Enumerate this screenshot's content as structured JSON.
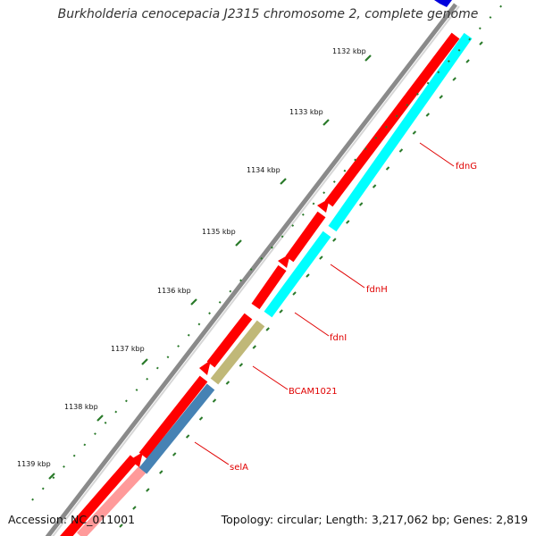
{
  "title": "Burkholderia cenocepacia J2315 chromosome 2, complete genome",
  "accession": "Accession: NC_011001",
  "summary": "Topology: circular; Length: 3,217,062 bp; Genes: 2,819",
  "colors": {
    "backbone": "#8a8a8a",
    "forward_gene": "#ff0000",
    "forward_gene_light": "#ff9a9a",
    "fdn_strand": "#00ffff",
    "bcam_strand": "#c0b878",
    "sel_strand": "#4682b4",
    "tick_major": "#2a7a2a",
    "tick_minor": "#2a7a2a",
    "label_color": "#e00000",
    "top_gene_blue": "#0000dd"
  },
  "ticks": [
    {
      "label": "1132 kbp"
    },
    {
      "label": "1133 kbp"
    },
    {
      "label": "1134 kbp"
    },
    {
      "label": "1135 kbp"
    },
    {
      "label": "1136 kbp"
    },
    {
      "label": "1137 kbp"
    },
    {
      "label": "1138 kbp"
    },
    {
      "label": "1139 kbp"
    }
  ],
  "gene_labels": [
    {
      "name": "fdnG"
    },
    {
      "name": "fdnH"
    },
    {
      "name": "fdnI"
    },
    {
      "name": "BCAM1021"
    },
    {
      "name": "selA"
    }
  ]
}
